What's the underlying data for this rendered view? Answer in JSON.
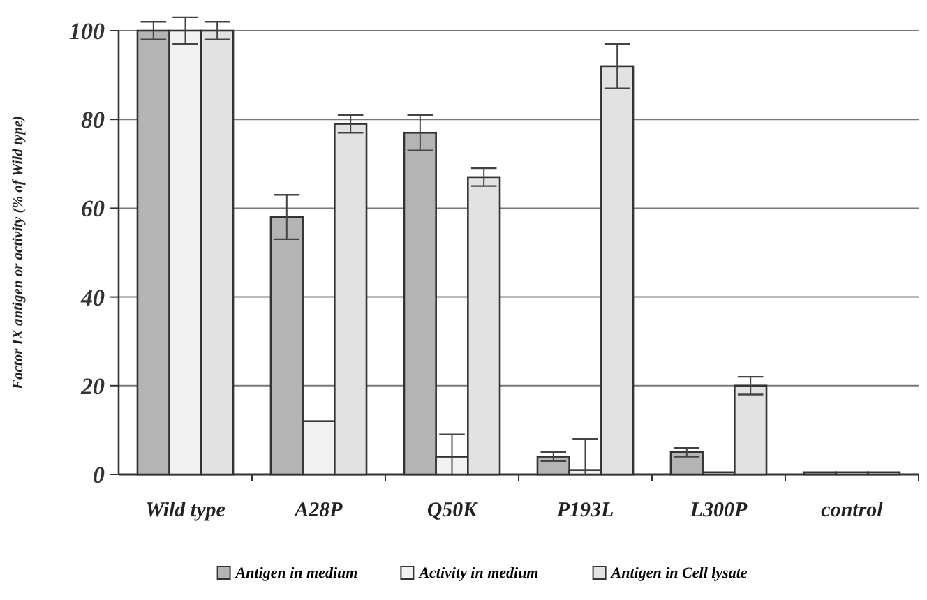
{
  "chart_data": {
    "type": "bar",
    "ylabel": "Factor IX antigen or activity (% of Wild type)",
    "categories": [
      "Wild type",
      "A28P",
      "Q50K",
      "P193L",
      "L300P",
      "control"
    ],
    "series": [
      {
        "name": "Antigen in medium",
        "color": "#b4b4b4",
        "values": [
          100,
          58,
          77,
          4,
          5,
          0.5
        ],
        "errors": [
          2,
          5,
          4,
          1,
          1,
          null
        ]
      },
      {
        "name": "Activity in medium",
        "color": "#f2f2f2",
        "values": [
          100,
          12,
          4,
          1,
          0.5,
          0.5
        ],
        "errors": [
          3,
          null,
          [
            0,
            9
          ],
          [
            0,
            8
          ],
          null,
          null
        ]
      },
      {
        "name": "Antigen in Cell lysate",
        "color": "#e2e2e2",
        "values": [
          100,
          79,
          67,
          92,
          20,
          0.5
        ],
        "errors": [
          2,
          2,
          2,
          5,
          2,
          null
        ]
      }
    ],
    "ylim": [
      0,
      100
    ],
    "yticks": [
      0,
      20,
      40,
      60,
      80,
      100
    ],
    "grid": "y",
    "legend": "bottom"
  }
}
